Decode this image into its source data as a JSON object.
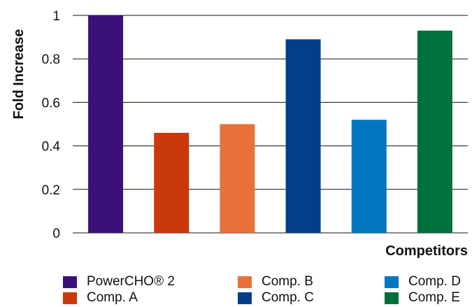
{
  "chart_data": {
    "type": "bar",
    "title": "",
    "xlabel": "Competitors",
    "ylabel": "Fold Increase",
    "ylim": [
      0,
      1
    ],
    "yticks": [
      "0",
      "0.2",
      "0.4",
      "0.6",
      "0.8",
      "1"
    ],
    "grid": true,
    "legend_position": "bottom",
    "categories": [
      "PowerCHO® 2",
      "Comp. A",
      "Comp. B",
      "Comp. C",
      "Comp. D",
      "Comp. E"
    ],
    "values": [
      1.0,
      0.46,
      0.5,
      0.89,
      0.52,
      0.93
    ],
    "colors": [
      "#3b1078",
      "#c9390a",
      "#e8713a",
      "#023e8a",
      "#0077c0",
      "#00703c"
    ]
  },
  "legend": [
    {
      "label": "PowerCHO® 2",
      "color": "#3b1078"
    },
    {
      "label": "Comp. B",
      "color": "#e8713a"
    },
    {
      "label": "Comp. D",
      "color": "#0077c0"
    },
    {
      "label": "Comp. A",
      "color": "#c9390a"
    },
    {
      "label": "Comp. C",
      "color": "#023e8a"
    },
    {
      "label": "Comp. E",
      "color": "#00703c"
    }
  ]
}
